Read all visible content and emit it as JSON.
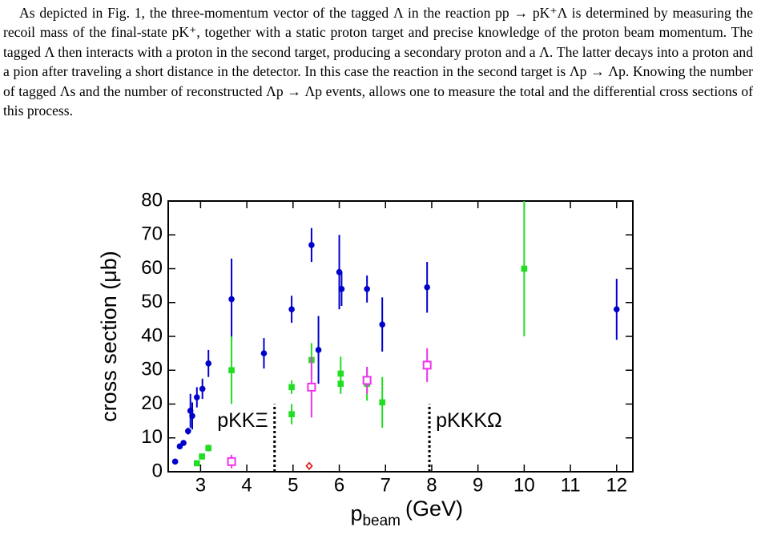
{
  "paragraph": "As depicted in Fig. 1, the three-momentum vector of the tagged Λ in the reaction pp → pK⁺Λ is determined by measuring the recoil mass of the final-state pK⁺, together with a static proton target and precise knowledge of the proton beam momentum. The tagged Λ then interacts with a proton in the second target, producing a secondary proton and a Λ. The latter decays into a proton and a pion after traveling a short distance in the detector. In this case the reaction in the second target is Λp → Λp. Knowing the number of tagged Λs and the number of reconstructed Λp → Λp events, allows one to measure the total and the differential cross sections of this process.",
  "chart_data": {
    "type": "scatter",
    "ylabel": "cross section (μb)",
    "xlabel": "p",
    "xlabel_sub": "beam",
    "xlabel_unit": "(GeV)",
    "xlim": [
      2.3,
      12.35
    ],
    "ylim": [
      0,
      80
    ],
    "xticks": [
      3,
      4,
      5,
      6,
      7,
      8,
      9,
      10,
      11,
      12
    ],
    "yticks": [
      0,
      10,
      20,
      30,
      40,
      50,
      60,
      70,
      80
    ],
    "series": [
      {
        "color": "#0000cc",
        "marker": "circle",
        "x": [
          2.45,
          2.55,
          2.63,
          2.73,
          2.78,
          2.82,
          2.92,
          3.04,
          3.17,
          3.67,
          4.37,
          4.97,
          5.4,
          5.55,
          6.0,
          6.05,
          6.6,
          6.93,
          7.9,
          12.0
        ],
        "values": [
          3,
          7.5,
          8.5,
          12,
          18,
          16.5,
          22,
          24.5,
          32,
          51,
          35,
          48,
          67,
          36,
          59,
          54,
          54,
          43.5,
          54.5,
          48
        ],
        "errors": [
          0.5,
          0.8,
          0.8,
          1,
          5,
          4,
          3,
          3,
          4,
          12,
          4.5,
          4,
          5,
          10,
          11,
          5,
          4,
          8,
          7.5,
          9
        ]
      },
      {
        "color": "#22dd22",
        "marker": "square",
        "x": [
          2.92,
          3.03,
          3.17,
          3.67,
          4.97,
          4.97,
          5.4,
          6.03,
          6.03,
          6.6,
          6.93,
          10.0
        ],
        "values": [
          2.5,
          4.5,
          7,
          30,
          25,
          17,
          33,
          29,
          26,
          26,
          20.5,
          60
        ],
        "errors": [
          0.5,
          0.8,
          1,
          10,
          2,
          3,
          5,
          5,
          3,
          5,
          7.5,
          20
        ]
      },
      {
        "color": "#ee33ee",
        "marker": "open-square",
        "x": [
          3.67,
          5.4,
          6.6,
          7.9
        ],
        "values": [
          3,
          25,
          27,
          31.5
        ],
        "errors": [
          2,
          9,
          4,
          5
        ]
      },
      {
        "color": "#dd2222",
        "marker": "open-diamond",
        "x": [
          5.35
        ],
        "values": [
          1.7
        ],
        "errors": [
          1
        ]
      }
    ],
    "thresholds": [
      {
        "x": 4.6,
        "top": 20,
        "label": "pKKΞ"
      },
      {
        "x": 7.95,
        "top": 20,
        "label": "pKKKΩ"
      }
    ]
  }
}
